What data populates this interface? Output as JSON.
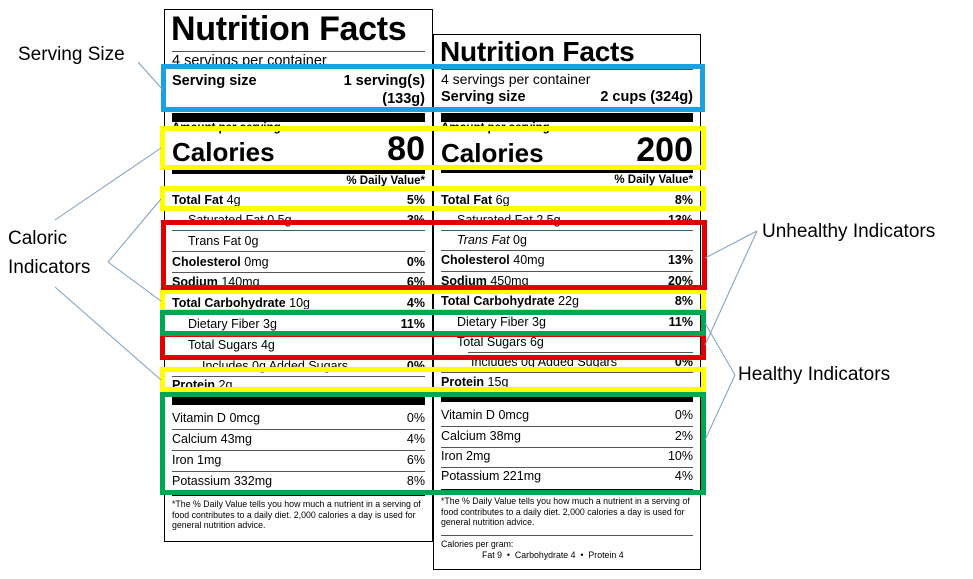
{
  "colors": {
    "serving_box": "#1ba1e2",
    "caloric_box": "#ffff00",
    "unhealthy_box": "#e00000",
    "healthy_box": "#00a651",
    "callout_line": "#7f9fbf"
  },
  "callouts": {
    "serving_size": "Serving Size",
    "caloric_line1": "Caloric",
    "caloric_line2": "Indicators",
    "unhealthy": "Unhealthy Indicators",
    "healthy": "Healthy Indicators"
  },
  "label_left": {
    "title": "Nutrition Facts",
    "servings_per_container": "4 servings per container",
    "serving_size_label": "Serving size",
    "serving_size_value_line1": "1 serving(s)",
    "serving_size_value_line2": "(133g)",
    "amount_per_serving": "Amount per serving",
    "calories_label": "Calories",
    "calories_value": "80",
    "daily_value_header": "% Daily Value*",
    "nutrients": [
      {
        "name": "Total Fat",
        "amount": "4g",
        "dv": "5%"
      },
      {
        "name": "Saturated Fat",
        "amount": "0.5g",
        "dv": "3%"
      },
      {
        "name": "Trans Fat",
        "amount": "0g",
        "dv": ""
      },
      {
        "name": "Cholesterol",
        "amount": "0mg",
        "dv": "0%"
      },
      {
        "name": "Sodium",
        "amount": "140mg",
        "dv": "6%"
      },
      {
        "name": "Total Carbohydrate",
        "amount": "10g",
        "dv": "4%"
      },
      {
        "name": "Dietary Fiber",
        "amount": "3g",
        "dv": "11%"
      },
      {
        "name": "Total Sugars",
        "amount": "4g",
        "dv": ""
      },
      {
        "name": "Includes 0g Added Sugars",
        "amount": "",
        "dv": "0%"
      },
      {
        "name": "Protein",
        "amount": "2g",
        "dv": ""
      }
    ],
    "vitamins": [
      {
        "name": "Vitamin D",
        "amount": "0mcg",
        "dv": "0%"
      },
      {
        "name": "Calcium",
        "amount": "43mg",
        "dv": "4%"
      },
      {
        "name": "Iron",
        "amount": "1mg",
        "dv": "6%"
      },
      {
        "name": "Potassium",
        "amount": "332mg",
        "dv": "8%"
      }
    ],
    "footnote": "*The % Daily Value tells you how much a nutrient in a serving of food contributes to a daily diet. 2,000 calories a day is used for general nutrition advice."
  },
  "label_right": {
    "title": "Nutrition Facts",
    "servings_per_container": "4 servings per container",
    "serving_size_label": "Serving size",
    "serving_size_value": "2 cups (324g)",
    "amount_per_serving": "Amount per serving",
    "calories_label": "Calories",
    "calories_value": "200",
    "daily_value_header": "% Daily Value*",
    "nutrients": [
      {
        "name": "Total Fat",
        "amount": "6g",
        "dv": "8%"
      },
      {
        "name": "Saturated Fat",
        "amount": "2.5g",
        "dv": "13%"
      },
      {
        "name": "Trans Fat",
        "amount": "0g",
        "dv": ""
      },
      {
        "name": "Cholesterol",
        "amount": "40mg",
        "dv": "13%"
      },
      {
        "name": "Sodium",
        "amount": "450mg",
        "dv": "20%"
      },
      {
        "name": "Total Carbohydrate",
        "amount": "22g",
        "dv": "8%"
      },
      {
        "name": "Dietary Fiber",
        "amount": "3g",
        "dv": "11%"
      },
      {
        "name": "Total Sugars",
        "amount": "6g",
        "dv": ""
      },
      {
        "name": "Includes 0g Added Sugars",
        "amount": "",
        "dv": "0%"
      },
      {
        "name": "Protein",
        "amount": "15g",
        "dv": ""
      }
    ],
    "vitamins": [
      {
        "name": "Vitamin D",
        "amount": "0mcg",
        "dv": "0%"
      },
      {
        "name": "Calcium",
        "amount": "38mg",
        "dv": "2%"
      },
      {
        "name": "Iron",
        "amount": "2mg",
        "dv": "10%"
      },
      {
        "name": "Potassium",
        "amount": "221mg",
        "dv": "4%"
      }
    ],
    "footnote": "*The % Daily Value tells you how much a nutrient in a serving of food contributes to a daily diet. 2,000 calories a day is used for general nutrition advice.",
    "calories_per_gram_label": "Calories per gram:",
    "calories_per_gram_values": "Fat 9  •  Carbohydrate 4  •  Protein 4"
  }
}
